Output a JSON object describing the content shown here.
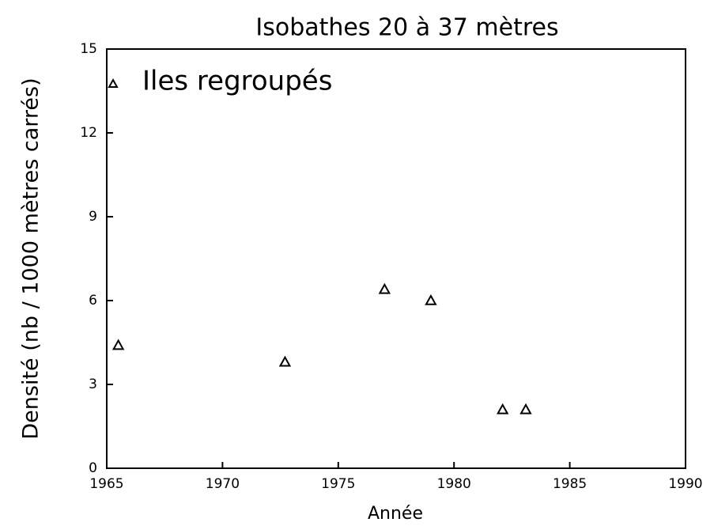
{
  "chart_data": {
    "type": "scatter",
    "title": "Isobathes 20 à 37 mètres",
    "xlabel": "Année",
    "ylabel": "Densité (nb / 1000 mètres carrés)",
    "x": [
      1965.5,
      1972.7,
      1977.0,
      1979.0,
      1982.1,
      1983.1
    ],
    "series": [
      {
        "name": "Iles regroupés",
        "color": "#000000",
        "values": [
          4.4,
          3.8,
          6.4,
          6.0,
          2.1,
          2.1
        ]
      }
    ],
    "xlim": [
      1965,
      1990
    ],
    "xticks": [
      1965,
      1970,
      1975,
      1980,
      1985,
      1990
    ],
    "ylim": [
      0,
      15
    ],
    "yticks": [
      0,
      3,
      6,
      9,
      12,
      15
    ],
    "grid": false,
    "legend": "upper left"
  }
}
